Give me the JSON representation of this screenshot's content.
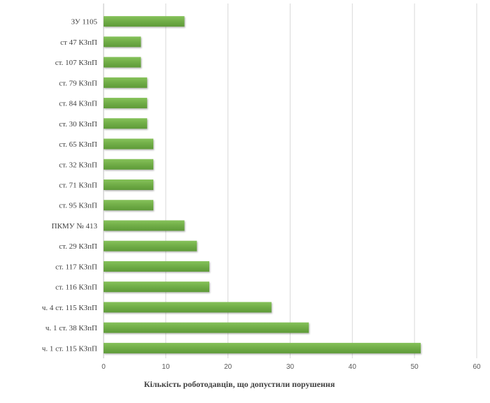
{
  "chart_data": {
    "type": "bar",
    "orientation": "horizontal",
    "categories": [
      "ЗУ 1105",
      "ст 47 КЗпП",
      "ст. 107 КЗпП",
      "ст. 79 КЗпП",
      "ст. 84 КЗпП",
      "ст. 30 КЗпП",
      "ст. 65 КЗпП",
      "ст. 32 КЗпП",
      "ст. 71 КЗпП",
      "ст. 95 КЗпП",
      "ПКМУ № 413",
      "ст. 29 КЗпП",
      "ст. 117 КЗпП",
      "ст. 116 КЗпП",
      "ч. 4 ст. 115 КЗпП",
      "ч. 1 ст. 38 КЗпП",
      "ч. 1 ст. 115 КЗпП"
    ],
    "values": [
      13,
      6,
      6,
      7,
      7,
      7,
      8,
      8,
      8,
      8,
      13,
      15,
      17,
      17,
      27,
      33,
      51
    ],
    "xlabel": "Кількість роботодавців,  що допустили порушення",
    "ylabel": "",
    "xlim": [
      0,
      60
    ],
    "xticks": [
      "0",
      "10",
      "20",
      "30",
      "40",
      "50",
      "60"
    ],
    "grid": "vertical",
    "bar_color": "#70ad47"
  }
}
